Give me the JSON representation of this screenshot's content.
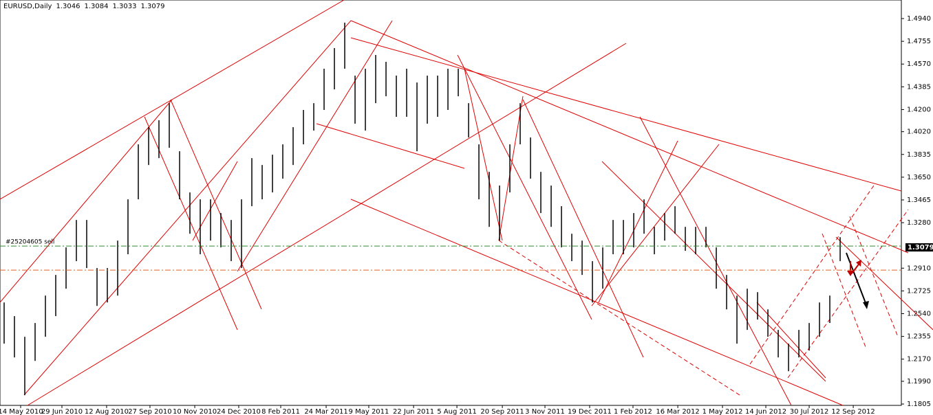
{
  "chart_data": {
    "type": "hlbar",
    "symbol": "EURUSD,Daily",
    "open": 1.3046,
    "high_price": 1.3084,
    "low_price": 1.3033,
    "close": 1.3079,
    "bar_color": "#000000",
    "high": [
      1.2631,
      1.252,
      1.2352,
      1.2464,
      1.2687,
      1.2855,
      1.3079,
      1.3302,
      1.3302,
      1.2911,
      1.2911,
      1.3134,
      1.347,
      1.3917,
      1.4057,
      1.4113,
      1.4252,
      1.3861,
      1.3526,
      1.347,
      1.347,
      1.3358,
      1.3302,
      1.347,
      1.3805,
      1.3749,
      1.3833,
      1.3917,
      1.4057,
      1.4197,
      1.4252,
      1.4532,
      1.47,
      1.4907,
      1.4476,
      1.4532,
      1.4644,
      1.4588,
      1.4476,
      1.4532,
      1.442,
      1.4476,
      1.4476,
      1.4532,
      1.4532,
      1.4252,
      1.3917,
      1.3693,
      1.3582,
      1.3917,
      1.4252,
      1.3973,
      1.3693,
      1.3582,
      1.3414,
      1.319,
      1.3134,
      1.2967,
      1.3079,
      1.3302,
      1.3302,
      1.3358,
      1.347,
      1.3246,
      1.3358,
      1.3414,
      1.3246,
      1.3246,
      1.3246,
      1.3079,
      1.2855,
      1.2687,
      1.2743,
      1.2715,
      1.2575,
      1.2408,
      1.2296,
      1.2408,
      1.2464,
      1.2631,
      1.2687,
      1.3162
    ],
    "low": [
      1.2296,
      1.2184,
      1.1877,
      1.2156,
      1.2352,
      1.252,
      1.2743,
      1.2967,
      1.2911,
      1.2603,
      1.2631,
      1.2687,
      1.3023,
      1.347,
      1.3749,
      1.3805,
      1.3889,
      1.347,
      1.319,
      1.3023,
      1.3134,
      1.3079,
      1.2967,
      1.2911,
      1.3414,
      1.347,
      1.3526,
      1.3638,
      1.3749,
      1.3917,
      1.4029,
      1.4197,
      1.4364,
      1.4532,
      1.4085,
      1.4029,
      1.4252,
      1.4308,
      1.4141,
      1.4141,
      1.3861,
      1.4085,
      1.4141,
      1.4197,
      1.4308,
      1.3973,
      1.347,
      1.3246,
      1.3134,
      1.3526,
      1.3917,
      1.3638,
      1.3358,
      1.3246,
      1.3079,
      1.2967,
      1.2855,
      1.2631,
      1.2743,
      1.3023,
      1.3023,
      1.3079,
      1.319,
      1.3023,
      1.3134,
      1.319,
      1.3051,
      1.3023,
      1.3079,
      1.2743,
      1.2575,
      1.2296,
      1.2408,
      1.2492,
      1.2352,
      1.2184,
      1.2072,
      1.2184,
      1.224,
      1.2352,
      1.2464,
      1.2967
    ],
    "xlim": [
      -0.4,
      86.93
    ],
    "xticks": [
      {
        "value": 1.6,
        "label": "14 May 2010"
      },
      {
        "value": 5.6,
        "label": "29 Jun 2010"
      },
      {
        "value": 9.93,
        "label": "12 Aug 2010"
      },
      {
        "value": 14.13,
        "label": "27 Sep 2010"
      },
      {
        "value": 18.47,
        "label": "10 Nov 2010"
      },
      {
        "value": 22.73,
        "label": "24 Dec 2010"
      },
      {
        "value": 26.8,
        "label": "8 Feb 2011"
      },
      {
        "value": 31.2,
        "label": "24 Mar 2011"
      },
      {
        "value": 35.33,
        "label": "9 May 2011"
      },
      {
        "value": 39.67,
        "label": "22 Jun 2011"
      },
      {
        "value": 43.87,
        "label": "5 Aug 2011"
      },
      {
        "value": 48.27,
        "label": "20 Sep 2011"
      },
      {
        "value": 52.4,
        "label": "3 Nov 2011"
      },
      {
        "value": 56.73,
        "label": "19 Dec 2011"
      },
      {
        "value": 60.93,
        "label": "1 Feb 2012"
      },
      {
        "value": 65.27,
        "label": "16 Mar 2012"
      },
      {
        "value": 69.6,
        "label": "1 May 2012"
      },
      {
        "value": 73.8,
        "label": "14 Jun 2012"
      },
      {
        "value": 78,
        "label": "30 Jul 2012"
      },
      {
        "value": 82.27,
        "label": "12 Sep 2012"
      }
    ],
    "ylim": [
      1.1794,
      1.5091
    ],
    "yticks": [
      {
        "value": 1.494,
        "label": "1.4940"
      },
      1.4755,
      {
        "value": 1.457,
        "label": "1.4570"
      },
      1.4385,
      {
        "value": 1.42,
        "label": "1.4200"
      },
      {
        "value": 1.402,
        "label": "1.4020"
      },
      1.3835,
      {
        "value": 1.365,
        "label": "1.3650"
      },
      1.3465,
      {
        "value": 1.328,
        "label": "1.3280"
      },
      {
        "value": 1.291,
        "label": "1.2910"
      },
      1.2725,
      {
        "value": 1.254,
        "label": "1.2540"
      },
      1.2355,
      {
        "value": 1.217,
        "label": "1.2170"
      },
      {
        "value": 1.199,
        "label": "1.1990"
      },
      1.1805
    ],
    "order_label": "#25204605 sell",
    "order_price": 1.309,
    "order_color": "#2e8b2e",
    "level_price": 1.2894,
    "level_color": "#e06020"
  }
}
